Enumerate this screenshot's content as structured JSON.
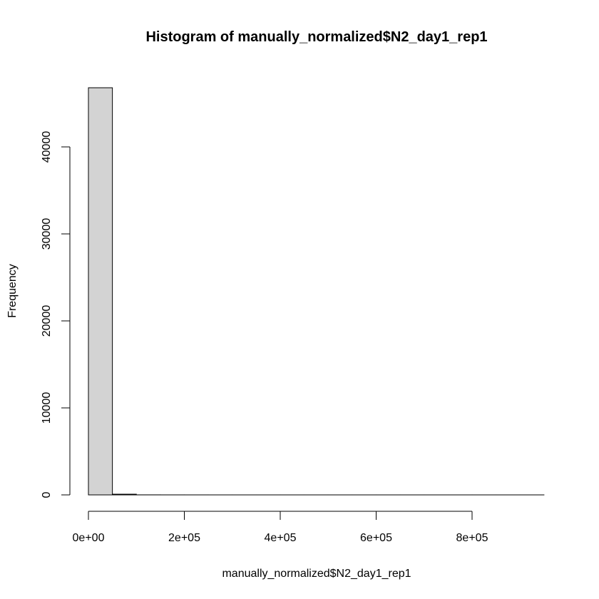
{
  "chart_data": {
    "type": "bar",
    "title": "Histogram of manually_normalized$N2_day1_rep1",
    "xlabel": "manually_normalized$N2_day1_rep1",
    "ylabel": "Frequency",
    "bin_width": 50000,
    "bin_start": 0,
    "values": [
      46800,
      80,
      6,
      3,
      2,
      1,
      1,
      1,
      1,
      1,
      1,
      1,
      1,
      1,
      1,
      1,
      1,
      1,
      1
    ],
    "xlim": [
      0,
      950000
    ],
    "ylim": [
      0,
      46800
    ],
    "x_ticks": [
      0,
      200000,
      400000,
      600000,
      800000
    ],
    "x_tick_labels": [
      "0e+00",
      "2e+05",
      "4e+05",
      "6e+05",
      "8e+05"
    ],
    "y_ticks": [
      0,
      10000,
      20000,
      30000,
      40000
    ],
    "y_tick_labels": [
      "0",
      "10000",
      "20000",
      "30000",
      "40000"
    ],
    "grid": false,
    "colors": {
      "bar_fill": "#d3d3d3",
      "bar_stroke": "#000000"
    }
  }
}
